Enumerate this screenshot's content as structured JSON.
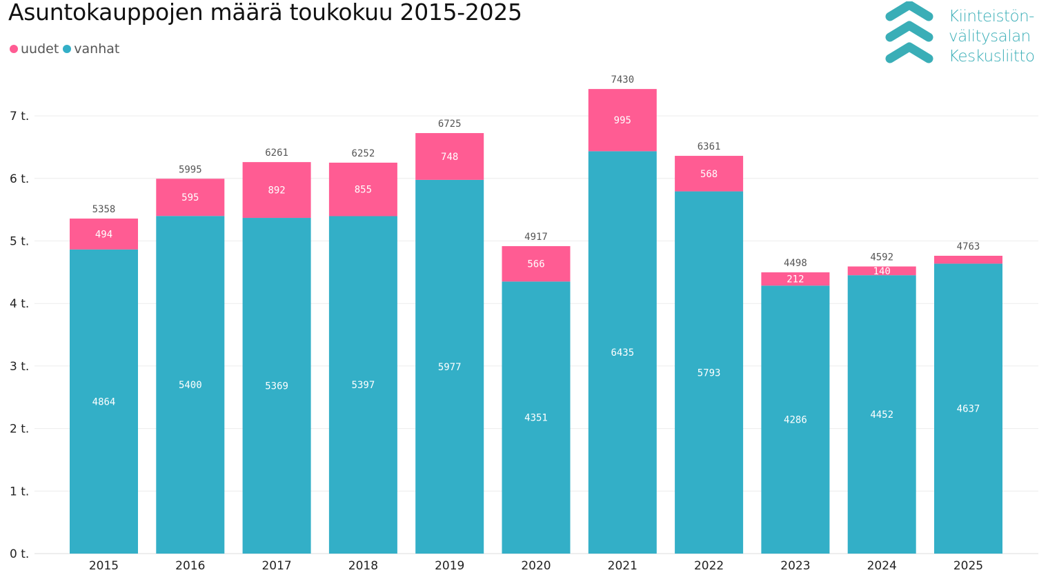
{
  "title": "Asuntokauppojen määrä toukokuu 2015-2025",
  "legend": [
    {
      "label": "uudet",
      "color": "#ff5c93"
    },
    {
      "label": "vanhat",
      "color": "#33afc7"
    }
  ],
  "logo": {
    "lines": [
      "Kiinteistön-",
      "välitysalan",
      "Keskusliitto"
    ],
    "color": "#3aaeb7"
  },
  "chart_data": {
    "type": "bar",
    "stacked": true,
    "title": "Asuntokauppojen määrä toukokuu 2015-2025",
    "categories": [
      "2015",
      "2016",
      "2017",
      "2018",
      "2019",
      "2020",
      "2021",
      "2022",
      "2023",
      "2024",
      "2025"
    ],
    "series": [
      {
        "name": "vanhat",
        "color": "#33afc7",
        "values": [
          4864,
          5400,
          5369,
          5397,
          5977,
          4351,
          6435,
          5793,
          4286,
          4452,
          4637
        ]
      },
      {
        "name": "uudet",
        "color": "#ff5c93",
        "values": [
          494,
          595,
          892,
          855,
          748,
          566,
          995,
          568,
          212,
          140,
          126
        ]
      }
    ],
    "segment_labels": {
      "vanhat": [
        "4864",
        "5400",
        "5369",
        "5397",
        "5977",
        "4351",
        "6435",
        "5793",
        "4286",
        "4452",
        "4637"
      ],
      "uudet": [
        "494",
        "595",
        "892",
        "855",
        "748",
        "566",
        "995",
        "568",
        "212",
        "140",
        ""
      ]
    },
    "totals": [
      5358,
      5995,
      6261,
      6252,
      6725,
      4917,
      7430,
      6361,
      4498,
      4592,
      4763
    ],
    "yticks": [
      {
        "value": 0,
        "label": "0 t."
      },
      {
        "value": 1000,
        "label": "1 t."
      },
      {
        "value": 2000,
        "label": "2 t."
      },
      {
        "value": 3000,
        "label": "3 t."
      },
      {
        "value": 4000,
        "label": "4 t."
      },
      {
        "value": 5000,
        "label": "5 t."
      },
      {
        "value": 6000,
        "label": "6 t."
      },
      {
        "value": 7000,
        "label": "7 t."
      }
    ],
    "ylim": [
      0,
      7500
    ],
    "grid": true,
    "legend_position": "top-left"
  }
}
